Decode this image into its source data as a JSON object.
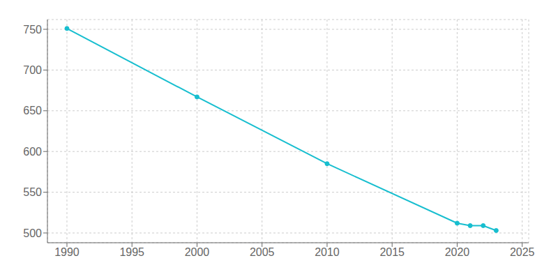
{
  "chart_data": {
    "type": "line",
    "x": [
      1990,
      2000,
      2010,
      2020,
      2021,
      2022,
      2023
    ],
    "values": [
      751,
      667,
      585,
      512,
      509,
      509,
      503
    ],
    "color": "#17becf",
    "marker": "circle",
    "line_style": "solid",
    "xlim": [
      1988.5,
      2025.5
    ],
    "ylim": [
      488,
      762
    ],
    "xticks": [
      1990,
      1995,
      2000,
      2005,
      2010,
      2015,
      2020,
      2025
    ],
    "yticks": [
      500,
      550,
      600,
      650,
      700,
      750
    ],
    "grid": true
  }
}
